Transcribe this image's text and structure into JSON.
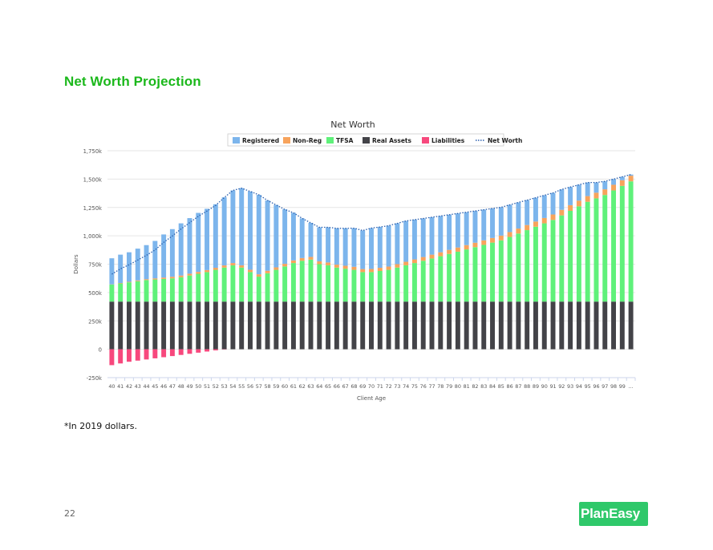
{
  "page": {
    "heading": "Net Worth Projection",
    "footnote": "*In 2019 dollars.",
    "page_number": "22",
    "logo_text": "PlanEasy"
  },
  "colors": {
    "heading": "#1bb81b",
    "registered": "#7cb5ec",
    "non_reg": "#f7a35c",
    "tfsa": "#5ff17a",
    "real_assets": "#434348",
    "liabilities": "#f7487d",
    "net_worth": "#2b5fad",
    "logo": "#2fc86a"
  },
  "chart_data": {
    "type": "bar",
    "stacked": true,
    "title": "Net Worth",
    "xlabel": "Client Age",
    "ylabel": "Dollars",
    "ylim": [
      -250000,
      1750000
    ],
    "yticks": [
      -250000,
      0,
      250000,
      500000,
      750000,
      1000000,
      1250000,
      1500000,
      1750000
    ],
    "ytick_labels": [
      "-250k",
      "0",
      "250k",
      "500k",
      "750k",
      "1,000k",
      "1,250k",
      "1,500k",
      "1,750k"
    ],
    "grid": true,
    "legend_position": "top",
    "categories": [
      "40",
      "41",
      "42",
      "43",
      "44",
      "45",
      "46",
      "47",
      "48",
      "49",
      "50",
      "51",
      "52",
      "53",
      "54",
      "55",
      "56",
      "57",
      "58",
      "59",
      "60",
      "61",
      "62",
      "63",
      "64",
      "65",
      "66",
      "67",
      "68",
      "69",
      "70",
      "71",
      "72",
      "73",
      "74",
      "75",
      "76",
      "77",
      "78",
      "79",
      "80",
      "81",
      "82",
      "83",
      "84",
      "85",
      "86",
      "87",
      "88",
      "89",
      "90",
      "91",
      "92",
      "93",
      "94",
      "95",
      "96",
      "97",
      "98",
      "99",
      "…"
    ],
    "series": [
      {
        "name": "Registered",
        "type": "bar",
        "color": "#7cb5ec",
        "values": [
          230000,
          250000,
          260000,
          280000,
          300000,
          330000,
          380000,
          420000,
          460000,
          490000,
          520000,
          540000,
          560000,
          600000,
          640000,
          680000,
          690000,
          700000,
          620000,
          550000,
          480000,
          420000,
          350000,
          300000,
          300000,
          310000,
          320000,
          330000,
          340000,
          340000,
          360000,
          360000,
          360000,
          360000,
          360000,
          350000,
          340000,
          330000,
          320000,
          310000,
          300000,
          290000,
          280000,
          270000,
          260000,
          250000,
          240000,
          230000,
          220000,
          210000,
          200000,
          190000,
          180000,
          160000,
          140000,
          120000,
          90000,
          70000,
          50000,
          30000,
          10000
        ]
      },
      {
        "name": "Non-Reg",
        "type": "bar",
        "color": "#f7a35c",
        "values": [
          2000,
          4000,
          5000,
          7000,
          8000,
          10000,
          12000,
          14000,
          15000,
          16000,
          17000,
          18000,
          18000,
          19000,
          20000,
          20000,
          21000,
          21000,
          22000,
          22000,
          23000,
          23000,
          24000,
          24000,
          25000,
          25000,
          26000,
          26000,
          27000,
          27000,
          28000,
          28000,
          29000,
          30000,
          31000,
          32000,
          33000,
          34000,
          35000,
          36000,
          37000,
          38000,
          39000,
          40000,
          41000,
          42000,
          43000,
          44000,
          45000,
          46000,
          47000,
          48000,
          49000,
          50000,
          50000,
          50000,
          50000,
          50000,
          50000,
          50000,
          50000
        ]
      },
      {
        "name": "TFSA",
        "type": "bar",
        "color": "#5ff17a",
        "values": [
          150000,
          160000,
          170000,
          180000,
          190000,
          195000,
          200000,
          205000,
          215000,
          230000,
          245000,
          260000,
          280000,
          300000,
          320000,
          300000,
          260000,
          220000,
          250000,
          280000,
          310000,
          340000,
          360000,
          370000,
          330000,
          320000,
          300000,
          290000,
          280000,
          260000,
          260000,
          270000,
          280000,
          300000,
          320000,
          340000,
          360000,
          380000,
          400000,
          420000,
          440000,
          460000,
          480000,
          500000,
          520000,
          540000,
          570000,
          600000,
          630000,
          660000,
          690000,
          720000,
          760000,
          800000,
          840000,
          880000,
          910000,
          940000,
          980000,
          1020000,
          1060000
        ]
      },
      {
        "name": "Real Assets",
        "type": "bar",
        "color": "#434348",
        "values": [
          420000,
          420000,
          420000,
          420000,
          420000,
          420000,
          420000,
          420000,
          420000,
          420000,
          420000,
          420000,
          420000,
          420000,
          420000,
          420000,
          420000,
          420000,
          420000,
          420000,
          420000,
          420000,
          420000,
          420000,
          420000,
          420000,
          420000,
          420000,
          420000,
          420000,
          420000,
          420000,
          420000,
          420000,
          420000,
          420000,
          420000,
          420000,
          420000,
          420000,
          420000,
          420000,
          420000,
          420000,
          420000,
          420000,
          420000,
          420000,
          420000,
          420000,
          420000,
          420000,
          420000,
          420000,
          420000,
          420000,
          420000,
          420000,
          420000,
          420000,
          420000
        ]
      },
      {
        "name": "Liabilities",
        "type": "bar",
        "color": "#f7487d",
        "values": [
          -140000,
          -125000,
          -110000,
          -100000,
          -90000,
          -80000,
          -70000,
          -60000,
          -50000,
          -40000,
          -30000,
          -20000,
          -10000,
          -2000,
          0,
          0,
          0,
          0,
          0,
          0,
          0,
          0,
          0,
          0,
          0,
          0,
          0,
          0,
          0,
          0,
          0,
          0,
          0,
          0,
          0,
          0,
          0,
          0,
          0,
          0,
          0,
          0,
          0,
          0,
          0,
          0,
          0,
          0,
          0,
          0,
          0,
          0,
          0,
          0,
          0,
          0,
          0,
          0,
          0,
          0,
          0
        ]
      },
      {
        "name": "Net Worth",
        "type": "line",
        "style": "dotted",
        "color": "#2b5fad",
        "values": [
          662000,
          709000,
          745000,
          787000,
          828000,
          875000,
          942000,
          999000,
          1060000,
          1116000,
          1172000,
          1218000,
          1268000,
          1337000,
          1400000,
          1420000,
          1391000,
          1361000,
          1312000,
          1272000,
          1233000,
          1203000,
          1154000,
          1114000,
          1075000,
          1075000,
          1066000,
          1066000,
          1067000,
          1047000,
          1068000,
          1078000,
          1089000,
          1110000,
          1131000,
          1142000,
          1153000,
          1164000,
          1175000,
          1186000,
          1197000,
          1208000,
          1219000,
          1230000,
          1241000,
          1252000,
          1273000,
          1294000,
          1315000,
          1336000,
          1357000,
          1378000,
          1409000,
          1430000,
          1450000,
          1470000,
          1470000,
          1480000,
          1500000,
          1520000,
          1540000
        ]
      }
    ]
  }
}
